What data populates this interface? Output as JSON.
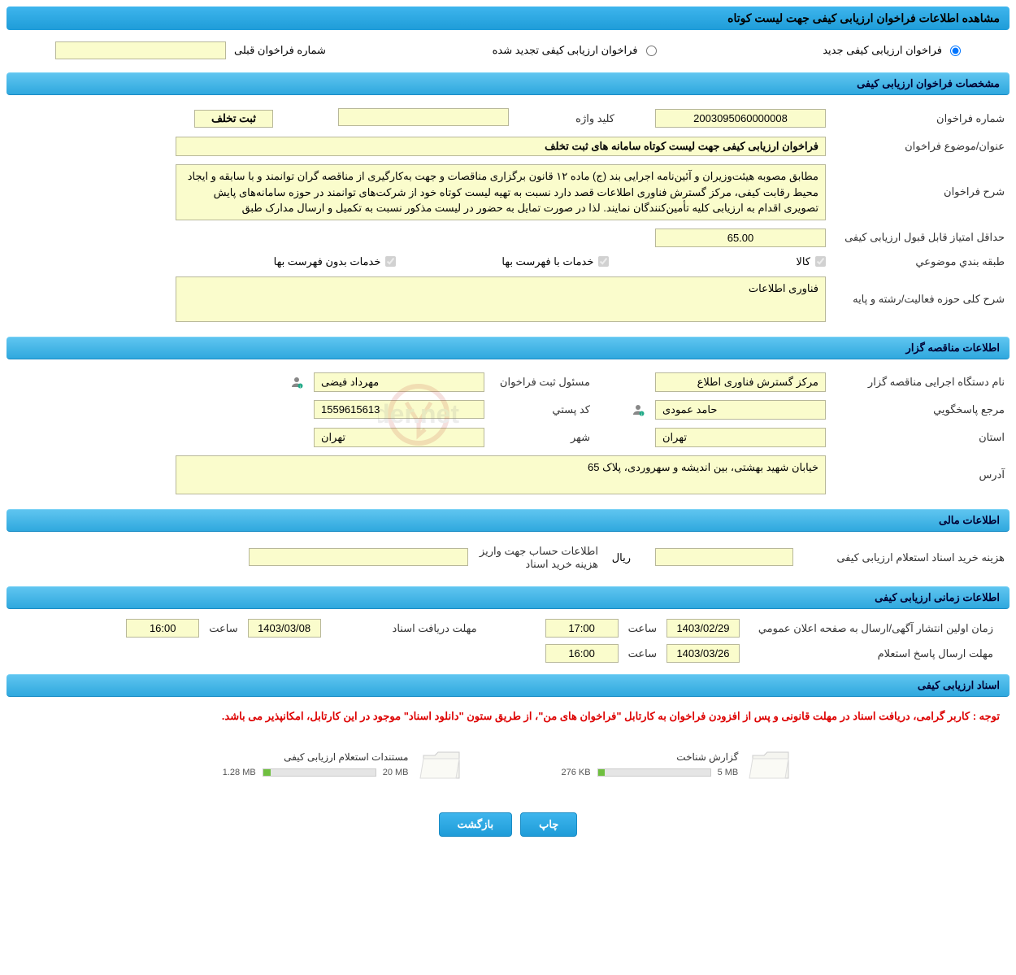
{
  "page_title": "مشاهده اطلاعات فراخوان ارزیابی کیفی جهت لیست کوتاه",
  "radios": {
    "new_call": "فراخوان ارزیابی کیفی جدید",
    "renewed_call": "فراخوان ارزیابی کیفی تجدید شده",
    "prev_num_label": "شماره فراخوان قبلی"
  },
  "sections": {
    "call_specs": "مشخصات فراخوان ارزیابی کیفی",
    "tenderer_info": "اطلاعات مناقصه گزار",
    "financial_info": "اطلاعات مالی",
    "time_info": "اطلاعات زمانی ارزیابی کیفی",
    "docs": "اسناد ارزیابی کیفی"
  },
  "call_specs": {
    "number_label": "شماره فراخوان",
    "number_value": "2003095060000008",
    "keyword_label": "کلید واژه",
    "keyword_value": "",
    "violation_btn": "ثبت تخلف",
    "subject_label": "عنوان/موضوع فراخوان",
    "subject_value": "فراخوان ارزیابی کیفی جهت لیست کوتاه سامانه های ثبت تخلف",
    "desc_label": "شرح فراخوان",
    "desc_value": "مطابق مصوبه هیئت‌وزیران و آئین‌نامه اجرایی بند (ج) ماده ۱۲ قانون برگزاری مناقصات و جهت به‌کارگیری از مناقصه گران توانمند و با سابقه و ایجاد محیط رقابت کیفی، مرکز گسترش فناوری اطلاعات قصد دارد نسبت به تهیه لیست کوتاه خود از شرکت‌های توانمند در حوزه سامانه‌های پایش تصویری اقدام به ارزیابی کلیه تأمین‌کنندگان نمایند. لذا در صورت تمایل به حضور در لیست مذکور نسبت به تکمیل و ارسال مدارک طبق",
    "min_score_label": "حداقل امتیاز قابل قبول ارزیابی کیفی",
    "min_score_value": "65.00",
    "category_label": "طبقه بندي موضوعي",
    "category_goods": "کالا",
    "category_services_list": "خدمات با فهرست بها",
    "category_services_nolist": "خدمات بدون فهرست بها",
    "field_label": "شرح کلی حوزه فعالیت/رشته و پایه",
    "field_value": "فناوری اطلاعات"
  },
  "tenderer": {
    "org_label": "نام دستگاه اجرایی مناقصه گزار",
    "org_value": "مرکز گسترش فناوری اطلاع",
    "registrar_label": "مسئول ثبت فراخوان",
    "registrar_value": "مهرداد فیضی",
    "responder_label": "مرجع پاسخگويي",
    "responder_value": "حامد عمودی",
    "postal_label": "کد پستي",
    "postal_value": "1559615613",
    "province_label": "استان",
    "province_value": "تهران",
    "city_label": "شهر",
    "city_value": "تهران",
    "address_label": "آدرس",
    "address_value": "خیابان شهید بهشتی، بین اندیشه و سهروردی، پلاک 65"
  },
  "financial": {
    "cost_label": "هزینه خرید اسناد استعلام ارزیابی کیفی",
    "cost_value": "",
    "rial": "ريال",
    "account_label": "اطلاعات حساب جهت واریز هزینه خرید اسناد",
    "account_value": ""
  },
  "times": {
    "publish_label": "زمان اولین انتشار آگهی/ارسال به صفحه اعلان عمومي",
    "publish_date": "1403/02/29",
    "publish_time": "17:00",
    "receive_label": "مهلت دریافت اسناد",
    "receive_date": "1403/03/08",
    "receive_time": "16:00",
    "response_label": "مهلت ارسال پاسخ استعلام",
    "response_date": "1403/03/26",
    "response_time": "16:00",
    "hour_word": "ساعت"
  },
  "docs": {
    "notice": "توجه : کاربر گرامی، دریافت اسناد در مهلت قانونی و پس از افزودن فراخوان به کارتابل \"فراخوان های من\"، از طریق ستون \"دانلود اسناد\" موجود در این کارتابل، امکانپذیر می باشد.",
    "items": [
      {
        "title": "گزارش شناخت",
        "size": "276 KB",
        "max": "5 MB",
        "fill_pct": 6
      },
      {
        "title": "مستندات استعلام ارزیابی کیفی",
        "size": "1.28 MB",
        "max": "20 MB",
        "fill_pct": 7
      }
    ]
  },
  "buttons": {
    "print": "چاپ",
    "back": "بازگشت"
  },
  "colors": {
    "header_bg": "#2fa8de",
    "field_bg": "#fafccc",
    "notice_color": "#d00000"
  }
}
